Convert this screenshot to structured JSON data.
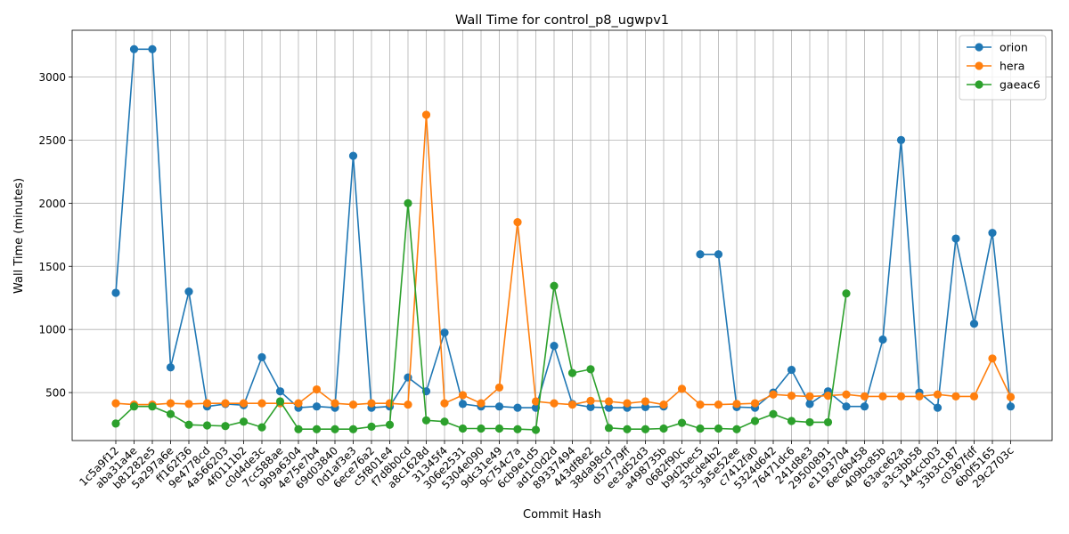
{
  "chart_data": {
    "type": "line",
    "title": "Wall Time for control_p8_ugwpv1",
    "xlabel": "Commit Hash",
    "ylabel": "Wall Time (minutes)",
    "ylim": [
      120,
      3370
    ],
    "yticks": [
      500,
      1000,
      1500,
      2000,
      2500,
      3000
    ],
    "grid": true,
    "legend_position": "top-right",
    "categories": [
      "1c5a9f12",
      "aba31a4e",
      "b81282e5",
      "5a297a6e",
      "ff162f36",
      "9e4778cd",
      "4a566203",
      "4f0111b2",
      "c0d4de3c",
      "7cc588ae",
      "9b9a6304",
      "4e75e7b4",
      "69d03840",
      "0d1af3e3",
      "6ece76a2",
      "c5f801e4",
      "f7d8b0cd",
      "a8c1628d",
      "31345f4",
      "306e2531",
      "5304e090",
      "9dc31e49",
      "9c754c7a",
      "6cb9e1d5",
      "ad1c0d2d",
      "89337494",
      "443df8e2",
      "38da98cd",
      "d57779ff",
      "ee3d52d3",
      "a498735b",
      "0682f90c",
      "b9d2bec5",
      "33cde4b2",
      "3a5e52ee",
      "c7412fa0",
      "5324d642",
      "76471dc6",
      "241d8e3",
      "29500891",
      "e1193704",
      "6ec6b458",
      "409bc85b",
      "63ace62a",
      "a3c3bb58",
      "144ccb03",
      "33b3c187",
      "c0367fdf",
      "6b0f5165",
      "29c2703c"
    ],
    "series": [
      {
        "name": "orion",
        "color": "#1f77b4",
        "values": [
          1290,
          3220,
          3220,
          700,
          1300,
          390,
          410,
          400,
          780,
          510,
          380,
          390,
          380,
          2375,
          380,
          390,
          620,
          510,
          975,
          410,
          390,
          390,
          380,
          380,
          870,
          410,
          385,
          380,
          380,
          385,
          390,
          null,
          1595,
          1595,
          385,
          380,
          500,
          680,
          410,
          510,
          390,
          390,
          920,
          2500,
          500,
          380,
          1720,
          1045,
          1765,
          390
        ]
      },
      {
        "name": "hera",
        "color": "#ff7f0e",
        "values": [
          415,
          405,
          405,
          415,
          410,
          415,
          415,
          415,
          415,
          415,
          415,
          525,
          415,
          405,
          415,
          415,
          405,
          2700,
          415,
          480,
          415,
          540,
          1850,
          430,
          415,
          405,
          435,
          430,
          415,
          430,
          405,
          530,
          405,
          405,
          410,
          415,
          485,
          475,
          470,
          475,
          485,
          470,
          470,
          470,
          470,
          485,
          470,
          470,
          770,
          465
        ]
      },
      {
        "name": "gaeac6",
        "color": "#2ca02c",
        "values": [
          255,
          390,
          390,
          330,
          245,
          240,
          235,
          270,
          225,
          430,
          210,
          210,
          210,
          210,
          230,
          245,
          2000,
          280,
          270,
          215,
          215,
          215,
          210,
          205,
          1345,
          655,
          685,
          220,
          210,
          210,
          215,
          260,
          215,
          215,
          210,
          275,
          330,
          275,
          265,
          265,
          1285,
          null,
          null,
          null,
          null,
          null,
          null,
          null,
          null,
          null
        ]
      }
    ]
  }
}
